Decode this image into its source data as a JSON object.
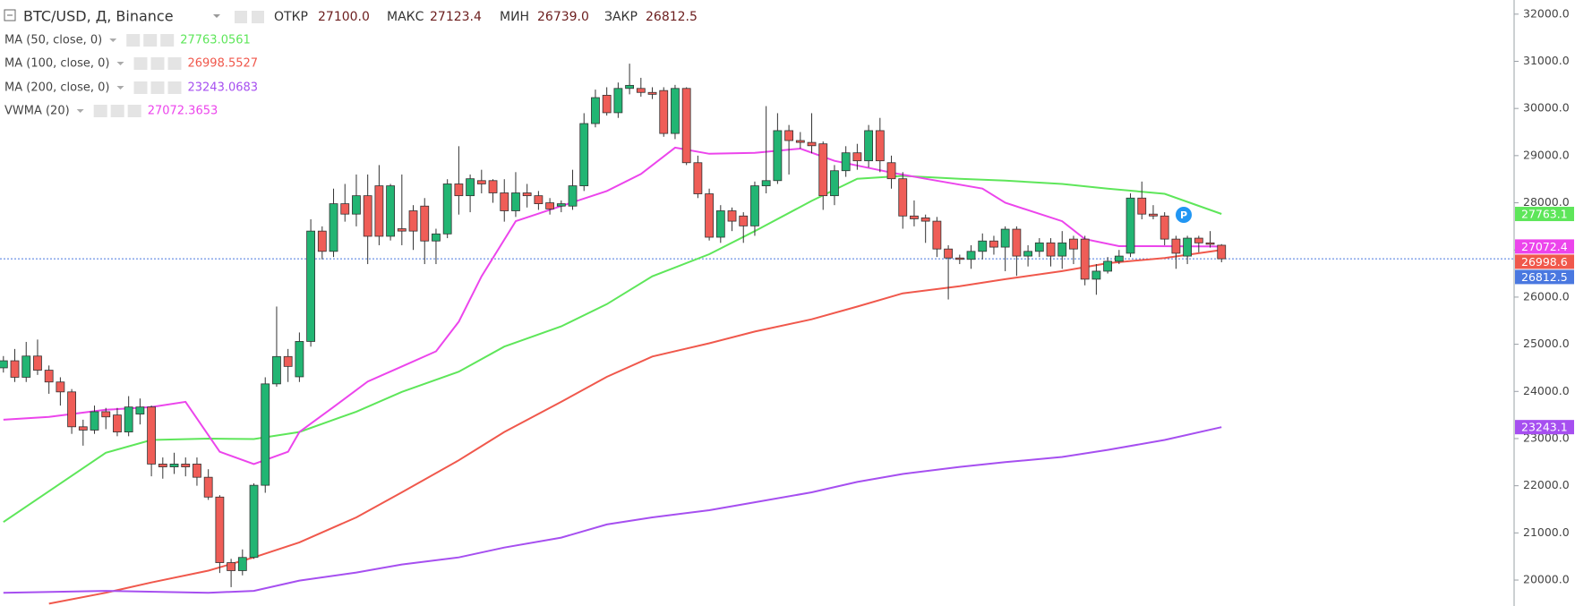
{
  "chart_data": {
    "type": "candlestick",
    "title": "BTC/USD, Д, Binance",
    "ohlc_header": [
      {
        "label": "ОТКР",
        "value": "27100.0"
      },
      {
        "label": "МАКС",
        "value": "27123.4"
      },
      {
        "label": "МИН",
        "value": "26739.0"
      },
      {
        "label": "ЗАКР",
        "value": "26812.5"
      }
    ],
    "up_color": "#22b573",
    "down_color": "#ef5d57",
    "open": [
      24500,
      24650,
      24300,
      24750,
      24450,
      24200,
      23990,
      23250,
      23180,
      23570,
      23500,
      23140,
      23520,
      23670,
      22460,
      22400,
      22460,
      22460,
      22180,
      21760,
      20370,
      20200,
      20480,
      22010,
      24160,
      24740,
      24310,
      25060,
      27400,
      26970,
      27980,
      27760,
      28150,
      28360,
      27290,
      27450,
      27830,
      27930,
      27190,
      27340,
      28400,
      28150,
      28470,
      28470,
      28210,
      27830,
      28210,
      28150,
      28000,
      27930,
      27930,
      28360,
      29680,
      30280,
      29910,
      30425,
      30425,
      30340,
      30380,
      29470,
      30425,
      28850,
      28190,
      27270,
      27830,
      27720,
      27510,
      28360,
      28470,
      29530,
      29320,
      29280,
      29250,
      28150,
      28680,
      29060,
      28890,
      29530,
      28850,
      28510,
      27720,
      27680,
      27610,
      27020,
      26830,
      26800,
      26970,
      27190,
      27060,
      27440,
      26870,
      26970,
      27150,
      26870,
      27230,
      27230,
      26380,
      26550,
      26760,
      26930,
      28100,
      27760,
      27720,
      27230,
      26870,
      27250,
      27150,
      27100.0
    ],
    "high": [
      24750,
      24900,
      25050,
      25100,
      24550,
      24300,
      24050,
      23400,
      23700,
      23650,
      23650,
      23900,
      23850,
      23700,
      22600,
      22700,
      22600,
      22600,
      22350,
      21800,
      20450,
      20650,
      22050,
      24300,
      25800,
      24900,
      25250,
      27650,
      27500,
      28300,
      28400,
      28600,
      28600,
      28800,
      28400,
      28600,
      27950,
      28100,
      27450,
      28500,
      29200,
      28600,
      28700,
      28500,
      28500,
      28650,
      28400,
      28250,
      28100,
      28050,
      28700,
      29900,
      30400,
      30450,
      30550,
      30950,
      30650,
      30450,
      30450,
      30500,
      30450,
      29000,
      28300,
      27950,
      27900,
      27800,
      28450,
      30050,
      29900,
      29650,
      29500,
      29900,
      29300,
      28800,
      29200,
      29250,
      29650,
      29800,
      29000,
      28650,
      28050,
      27750,
      27700,
      27100,
      26900,
      27100,
      27350,
      27300,
      27500,
      27500,
      27100,
      27250,
      27250,
      27400,
      27300,
      27300,
      26700,
      26850,
      27000,
      28200,
      28450,
      27950,
      27800,
      27300,
      27300,
      27300,
      27400,
      27123.4
    ],
    "low": [
      24400,
      24200,
      24200,
      24350,
      23950,
      23700,
      23100,
      22850,
      23100,
      23200,
      23050,
      23050,
      23300,
      22200,
      22150,
      22250,
      22200,
      22000,
      21700,
      20150,
      19850,
      20100,
      20450,
      21850,
      24100,
      24200,
      24200,
      24950,
      26800,
      26850,
      27600,
      27500,
      26700,
      27100,
      27200,
      27100,
      27000,
      26700,
      26700,
      27250,
      27750,
      27800,
      28200,
      28000,
      27600,
      27700,
      27900,
      27850,
      27750,
      27800,
      27850,
      28250,
      29600,
      29850,
      29800,
      30300,
      30250,
      30200,
      29400,
      29350,
      28800,
      28100,
      27200,
      27150,
      27400,
      27150,
      27300,
      28200,
      28400,
      28600,
      29150,
      29050,
      27850,
      27950,
      28550,
      28700,
      28750,
      28650,
      28300,
      27450,
      27500,
      27150,
      26850,
      25950,
      26700,
      26600,
      26800,
      26900,
      26550,
      26450,
      26650,
      26850,
      26650,
      26600,
      26700,
      26250,
      26050,
      26500,
      26700,
      26850,
      27650,
      27650,
      27100,
      26600,
      26700,
      26950,
      27050,
      26739.0
    ],
    "close": [
      24650,
      24300,
      24750,
      24450,
      24200,
      23990,
      23250,
      23180,
      23570,
      23460,
      23140,
      23670,
      23670,
      22460,
      22400,
      22460,
      22400,
      22180,
      21760,
      20370,
      20200,
      20480,
      22010,
      24160,
      24740,
      24530,
      25060,
      27400,
      26970,
      27980,
      27760,
      28150,
      27290,
      27290,
      28360,
      27400,
      27400,
      27190,
      27340,
      28400,
      28150,
      28510,
      28400,
      28210,
      27830,
      28210,
      28150,
      27980,
      27870,
      27980,
      28360,
      29680,
      30230,
      29910,
      30425,
      30490,
      30340,
      30300,
      29470,
      30425,
      28850,
      28190,
      27270,
      27830,
      27610,
      27510,
      28360,
      28470,
      29530,
      29320,
      29280,
      29210,
      28150,
      28680,
      29060,
      28890,
      29530,
      28890,
      28510,
      27720,
      27660,
      27610,
      27020,
      26830,
      26800,
      26970,
      27190,
      27060,
      27440,
      26870,
      26970,
      27150,
      26870,
      27150,
      27020,
      26380,
      26550,
      26760,
      26870,
      28100,
      27760,
      27720,
      27230,
      26930,
      27250,
      27150,
      27120,
      26812.5
    ],
    "series": [
      {
        "name": "MA (50, close, 0)",
        "color": "#5ee65a",
        "legend_value": 27763.0561,
        "price_tag": 27763.1,
        "x": [
          0,
          9,
          13,
          18,
          22,
          26,
          31,
          35,
          40,
          44,
          49,
          53,
          57,
          62,
          66,
          71,
          75,
          79,
          84,
          88,
          93,
          97,
          102,
          107
        ],
        "values": [
          21230,
          22700,
          22970,
          23000,
          22990,
          23140,
          23570,
          23990,
          24420,
          24950,
          25380,
          25850,
          26440,
          26910,
          27400,
          28040,
          28510,
          28570,
          28510,
          28470,
          28400,
          28300,
          28190,
          27763
        ]
      },
      {
        "name": "MA (100, close, 0)",
        "color": "#f0584c",
        "legend_value": 26998.5527,
        "price_tag": 26998.6,
        "x": [
          4,
          9,
          13,
          18,
          22,
          26,
          31,
          35,
          40,
          44,
          49,
          53,
          57,
          62,
          66,
          71,
          75,
          79,
          84,
          88,
          93,
          97,
          102,
          107
        ],
        "values": [
          19500,
          19730,
          19950,
          20200,
          20480,
          20800,
          21330,
          21860,
          22540,
          23140,
          23780,
          24310,
          24740,
          25020,
          25270,
          25530,
          25800,
          26080,
          26230,
          26380,
          26550,
          26720,
          26830,
          26999
        ]
      },
      {
        "name": "MA (200, close, 0)",
        "color": "#a64ff0",
        "legend_value": 23243.0683,
        "price_tag": 23243.1,
        "x": [
          0,
          9,
          18,
          22,
          26,
          31,
          35,
          40,
          44,
          49,
          53,
          57,
          62,
          66,
          71,
          75,
          79,
          84,
          88,
          93,
          97,
          102,
          107
        ],
        "values": [
          19730,
          19770,
          19730,
          19770,
          19990,
          20160,
          20330,
          20480,
          20690,
          20900,
          21180,
          21330,
          21480,
          21650,
          21860,
          22080,
          22250,
          22400,
          22500,
          22610,
          22760,
          22970,
          23243
        ]
      },
      {
        "name": "VWMA (20)",
        "color": "#ec45ec",
        "legend_value": 27072.3653,
        "price_tag": 27072.4,
        "x": [
          0,
          4,
          9,
          13,
          16,
          19,
          22,
          25,
          26,
          29,
          32,
          35,
          38,
          40,
          42,
          45,
          49,
          53,
          56,
          59,
          62,
          66,
          70,
          73,
          78,
          81,
          86,
          88,
          93,
          95,
          98,
          101,
          107
        ],
        "values": [
          23400,
          23460,
          23610,
          23670,
          23780,
          22720,
          22460,
          22720,
          23140,
          23670,
          24210,
          24530,
          24850,
          25480,
          26440,
          27610,
          27930,
          28250,
          28610,
          29170,
          29040,
          29060,
          29150,
          28890,
          28640,
          28510,
          28300,
          28000,
          27610,
          27230,
          27080,
          27080,
          27072
        ]
      }
    ],
    "close_tag": 26812.5,
    "close_color": "#4a78e0",
    "xlim": [
      -0.3,
      132.7
    ],
    "ylim": [
      19450,
      32300
    ],
    "yticks": [
      {
        "value": 20000,
        "label": "20000.0"
      },
      {
        "value": 21000,
        "label": "21000.0"
      },
      {
        "value": 22000,
        "label": "22000.0"
      },
      {
        "value": 23000,
        "label": "23000.0"
      },
      {
        "value": 24000,
        "label": "24000.0"
      },
      {
        "value": 25000,
        "label": "25000.0"
      },
      {
        "value": 26000,
        "label": "26000.0"
      },
      {
        "value": 27000,
        "label": "27000.0"
      },
      {
        "value": 28000,
        "label": "28000.0"
      },
      {
        "value": 29000,
        "label": "29000.0"
      },
      {
        "value": 30000,
        "label": "30000.0"
      },
      {
        "value": 31000,
        "label": "31000.0"
      },
      {
        "value": 32000,
        "label": "32000.0"
      }
    ],
    "grid": false
  }
}
